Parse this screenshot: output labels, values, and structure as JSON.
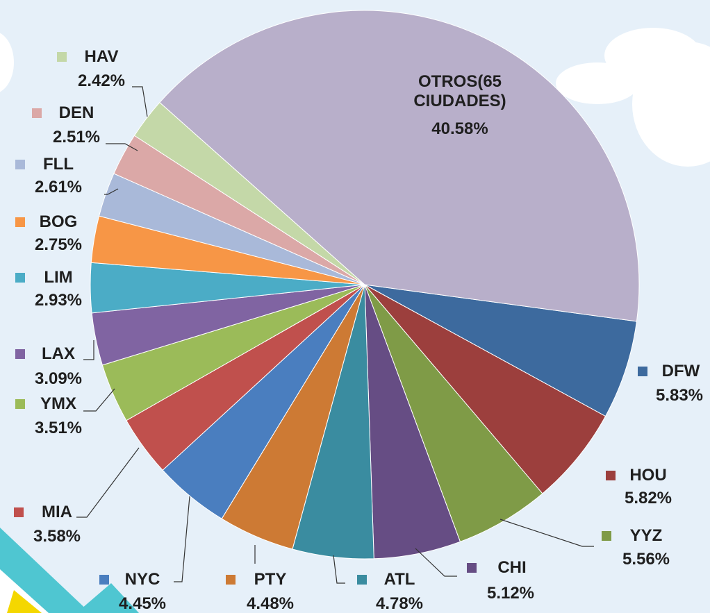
{
  "chart_data": {
    "type": "pie",
    "categories": [
      "DFW",
      "HOU",
      "YYZ",
      "CHI",
      "ATL",
      "PTY",
      "NYC",
      "MIA",
      "YMX",
      "LAX",
      "LIM",
      "BOG",
      "FLL",
      "DEN",
      "HAV",
      "OTROS(65 CIUDADES)"
    ],
    "values": [
      5.83,
      5.82,
      5.56,
      5.12,
      4.78,
      4.48,
      4.45,
      3.58,
      3.51,
      3.09,
      2.93,
      2.75,
      2.61,
      2.51,
      2.42,
      40.58
    ],
    "value_labels": [
      "5.83%",
      "5.82%",
      "5.56%",
      "5.12%",
      "4.78%",
      "4.48%",
      "4.45%",
      "3.58%",
      "3.51%",
      "3.09%",
      "2.93%",
      "2.75%",
      "2.61%",
      "2.51%",
      "2.42%",
      "40.58%"
    ],
    "colors": [
      "#3d6a9e",
      "#9c3f3d",
      "#7f9b47",
      "#664d84",
      "#3a8ca0",
      "#cd7a34",
      "#4a7ebf",
      "#c0504d",
      "#9bbb59",
      "#8064a2",
      "#4bacc6",
      "#f79646",
      "#a9b9d9",
      "#dba8a7",
      "#c4d8a8",
      "#b8afca"
    ]
  }
}
